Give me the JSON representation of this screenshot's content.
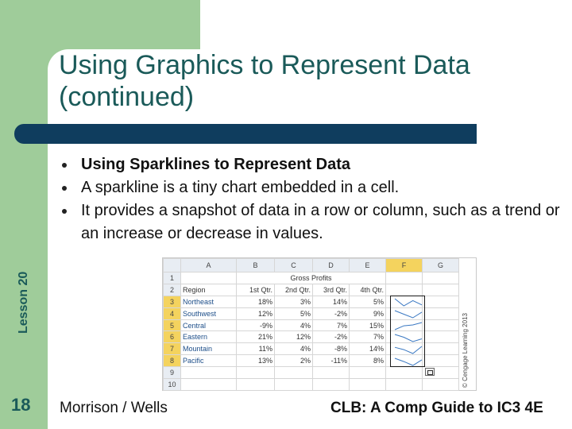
{
  "slide": {
    "title": "Using Graphics to Represent Data (continued)",
    "lesson": "Lesson 20",
    "number": "18",
    "footer_left": "Morrison / Wells",
    "footer_right": "CLB: A Comp Guide to IC3 4E",
    "bullets": [
      "Using Sparklines to Represent Data",
      "A sparkline is a tiny chart embedded in a cell.",
      "It provides a snapshot of data in a row or column, such as a trend or an increase or decrease in values."
    ]
  },
  "spreadsheet": {
    "columns": [
      "A",
      "B",
      "C",
      "D",
      "E",
      "F",
      "G"
    ],
    "selected_column": "F",
    "merged_title": "Gross Profits",
    "header_row": [
      "Region",
      "1st Qtr.",
      "2nd Qtr.",
      "3rd Qtr.",
      "4th Qtr."
    ],
    "rows": [
      [
        "Northeast",
        "18%",
        "3%",
        "14%",
        "5%"
      ],
      [
        "Southwest",
        "12%",
        "5%",
        "-2%",
        "9%"
      ],
      [
        "Central",
        "-9%",
        "4%",
        "7%",
        "15%"
      ],
      [
        "Eastern",
        "21%",
        "12%",
        "-2%",
        "7%"
      ],
      [
        "Mountain",
        "11%",
        "4%",
        "-8%",
        "14%"
      ],
      [
        "Pacific",
        "13%",
        "2%",
        "-11%",
        "8%"
      ]
    ],
    "row_numbers": [
      "1",
      "2",
      "3",
      "4",
      "5",
      "6",
      "7",
      "8",
      "9",
      "10"
    ],
    "copyright": "© Cengage Learning 2013"
  },
  "colors": {
    "accent_green": "#9fcc9a",
    "title_teal": "#1a5a59",
    "bar_navy": "#0f3d5e",
    "selection_yellow": "#f4d35e"
  }
}
